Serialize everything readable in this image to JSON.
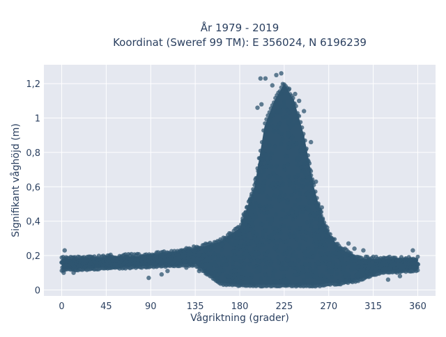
{
  "chart_data": {
    "type": "scatter",
    "title_line1": "År 1979 - 2019",
    "title_line2": "Koordinat (Sweref 99 TM): E 356024, N 6196239",
    "xlabel": "Vågriktning (grader)",
    "ylabel": "Signifikant våghöjd (m)",
    "xlim": [
      -18,
      378
    ],
    "ylim": [
      -0.035,
      1.31
    ],
    "xticks": [
      0,
      45,
      90,
      135,
      180,
      225,
      270,
      315,
      360
    ],
    "xtick_labels": [
      "0",
      "45",
      "90",
      "135",
      "180",
      "225",
      "270",
      "315",
      "360"
    ],
    "yticks": [
      0,
      0.2,
      0.4,
      0.6,
      0.8,
      1.0,
      1.2
    ],
    "ytick_labels": [
      "0",
      "0,2",
      "0,4",
      "0,6",
      "0,8",
      "1",
      "1,2"
    ],
    "grid": true,
    "legend": "none",
    "colors": {
      "marker": "#2f5570",
      "plot_bg": "#e5e8f0",
      "grid": "#ffffff"
    },
    "marker_opacity": 0.75,
    "envelope": {
      "x": [
        0,
        45,
        90,
        135,
        160,
        180,
        195,
        205,
        215,
        225,
        235,
        245,
        255,
        262,
        270,
        280,
        300,
        320,
        360
      ],
      "ymin": [
        0.12,
        0.13,
        0.14,
        0.15,
        0.04,
        0.03,
        0.03,
        0.03,
        0.03,
        0.03,
        0.03,
        0.03,
        0.03,
        0.03,
        0.04,
        0.04,
        0.06,
        0.1,
        0.12
      ],
      "ymax": [
        0.18,
        0.19,
        0.2,
        0.24,
        0.28,
        0.36,
        0.6,
        0.95,
        1.1,
        1.2,
        1.1,
        0.9,
        0.6,
        0.45,
        0.33,
        0.25,
        0.18,
        0.18,
        0.18
      ]
    },
    "outliers": [
      {
        "x": 201,
        "y": 1.23
      },
      {
        "x": 206,
        "y": 1.23
      },
      {
        "x": 217,
        "y": 1.25
      },
      {
        "x": 222,
        "y": 1.26
      },
      {
        "x": 213,
        "y": 1.19
      },
      {
        "x": 230,
        "y": 1.17
      },
      {
        "x": 236,
        "y": 1.14
      },
      {
        "x": 240,
        "y": 1.1
      },
      {
        "x": 245,
        "y": 1.04
      },
      {
        "x": 202,
        "y": 1.08
      },
      {
        "x": 198,
        "y": 1.06
      },
      {
        "x": 252,
        "y": 0.86
      },
      {
        "x": 257,
        "y": 0.63
      },
      {
        "x": 263,
        "y": 0.48
      },
      {
        "x": 290,
        "y": 0.27
      },
      {
        "x": 296,
        "y": 0.24
      },
      {
        "x": 305,
        "y": 0.23
      },
      {
        "x": 330,
        "y": 0.06
      },
      {
        "x": 342,
        "y": 0.08
      },
      {
        "x": 88,
        "y": 0.07
      },
      {
        "x": 101,
        "y": 0.09
      },
      {
        "x": 107,
        "y": 0.11
      },
      {
        "x": 126,
        "y": 0.13
      },
      {
        "x": 139,
        "y": 0.11
      },
      {
        "x": 147,
        "y": 0.1
      },
      {
        "x": 2,
        "y": 0.1
      },
      {
        "x": 12,
        "y": 0.1
      },
      {
        "x": 355,
        "y": 0.23
      },
      {
        "x": 3,
        "y": 0.23
      },
      {
        "x": 184,
        "y": 0.44
      },
      {
        "x": 190,
        "y": 0.52
      }
    ]
  }
}
